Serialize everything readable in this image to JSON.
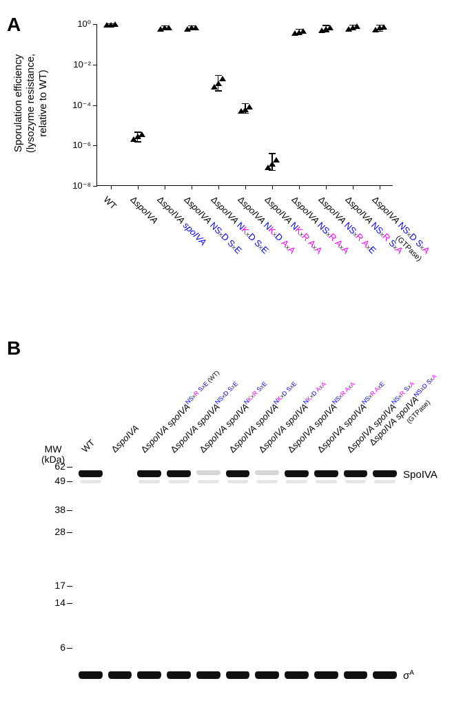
{
  "panelA": {
    "label": "A",
    "type": "scatter",
    "y_axis_label": "Sporulation efficiency\n(lysozyme resistance,\nrelative to WT)",
    "y_scale": "log",
    "ylim": [
      1e-08,
      1.0
    ],
    "y_ticks": [
      1e-08,
      1e-06,
      0.0001,
      0.01,
      1.0
    ],
    "y_tick_labels": [
      "10⁻⁸",
      "10⁻⁶",
      "10⁻⁴",
      "10⁻²",
      "10⁰"
    ],
    "axis_color": "#000000",
    "background_color": "#ffffff",
    "marker_shape": "triangle",
    "marker_color": "#000000",
    "marker_size": 8,
    "label_fontsize": 15,
    "tick_fontsize": 13,
    "x_label_fontsize": 13,
    "x_label_rotation": -45,
    "categories": [
      {
        "id": "wt",
        "plain": "WT",
        "italic": false
      },
      {
        "id": "dspoiva",
        "prefix": "Δ",
        "spoiva": true
      },
      {
        "id": "comp_wt",
        "prefix": "Δ",
        "spoiva": true,
        "comp": "spoIVA",
        "comp_color": "#0000ff"
      },
      {
        "id": "nsxd_sxe",
        "prefix": "Δ",
        "spoiva": true,
        "walkerA": [
          "N",
          "S",
          "D"
        ],
        "walkerB": [
          "S",
          "E"
        ]
      },
      {
        "id": "nkxd_sxe",
        "prefix": "Δ",
        "spoiva": true,
        "walkerA": [
          "N",
          "K",
          "D"
        ],
        "walkerB": [
          "S",
          "E"
        ]
      },
      {
        "id": "nkxd_axa",
        "prefix": "Δ",
        "spoiva": true,
        "walkerA": [
          "N",
          "K",
          "D"
        ],
        "walkerB": [
          "A",
          "A"
        ]
      },
      {
        "id": "nkxr_axa",
        "prefix": "Δ",
        "spoiva": true,
        "walkerA": [
          "N",
          "K",
          "R"
        ],
        "walkerB": [
          "A",
          "A"
        ]
      },
      {
        "id": "nsxr_axa",
        "prefix": "Δ",
        "spoiva": true,
        "walkerA": [
          "N",
          "S",
          "R"
        ],
        "walkerB": [
          "A",
          "A"
        ]
      },
      {
        "id": "nsxr_axe",
        "prefix": "Δ",
        "spoiva": true,
        "walkerA": [
          "N",
          "S",
          "R"
        ],
        "walkerB": [
          "A",
          "E"
        ]
      },
      {
        "id": "nsxr_sxa",
        "prefix": "Δ",
        "spoiva": true,
        "walkerA": [
          "N",
          "S",
          "R"
        ],
        "walkerB": [
          "S",
          "A"
        ]
      },
      {
        "id": "nsxd_sxa",
        "prefix": "Δ",
        "spoiva": true,
        "walkerA": [
          "N",
          "S",
          "D"
        ],
        "walkerB": [
          "S",
          "A"
        ],
        "note": "(GTPase)"
      }
    ],
    "data": [
      {
        "cat": 0,
        "points": [
          0.9,
          0.95,
          1.0
        ],
        "err": [
          0.85,
          1.05
        ]
      },
      {
        "cat": 1,
        "points": [
          2e-06,
          2.8e-06,
          3.5e-06
        ],
        "err": [
          1.5e-06,
          4.5e-06
        ]
      },
      {
        "cat": 2,
        "points": [
          0.6,
          0.65,
          0.7
        ],
        "err": [
          0.5,
          0.8
        ]
      },
      {
        "cat": 3,
        "points": [
          0.6,
          0.65,
          0.7
        ],
        "err": [
          0.5,
          0.8
        ]
      },
      {
        "cat": 4,
        "points": [
          0.0008,
          0.0012,
          0.002
        ],
        "err": [
          0.0005,
          0.003
        ]
      },
      {
        "cat": 5,
        "points": [
          5e-05,
          6e-05,
          8e-05
        ],
        "err": [
          4e-05,
          0.00012
        ]
      },
      {
        "cat": 6,
        "points": [
          8e-08,
          1.2e-07,
          2e-07
        ],
        "err": [
          6e-08,
          4e-07
        ]
      },
      {
        "cat": 7,
        "points": [
          0.35,
          0.4,
          0.45
        ],
        "err": [
          0.3,
          0.55
        ]
      },
      {
        "cat": 8,
        "points": [
          0.5,
          0.6,
          0.7
        ],
        "err": [
          0.4,
          0.85
        ]
      },
      {
        "cat": 9,
        "points": [
          0.6,
          0.7,
          0.8
        ],
        "err": [
          0.5,
          0.9
        ]
      },
      {
        "cat": 10,
        "points": [
          0.55,
          0.65,
          0.75
        ],
        "err": [
          0.45,
          0.88
        ]
      }
    ]
  },
  "panelB": {
    "label": "B",
    "type": "western_blot",
    "mw_header": "MW\n(kDa)",
    "mw_markers": [
      62,
      49,
      38,
      28,
      17,
      14,
      6
    ],
    "protein_label": "SpoIVA",
    "loading_control_label": "σᴬ",
    "band_color": "#111111",
    "background_color": "#ffffff",
    "lane_label_fontsize": 13,
    "mw_fontsize": 14,
    "lane_label_rotation": -45,
    "lanes": [
      {
        "id": "wt",
        "plain": "WT",
        "has_spoiva_band": true,
        "has_sigma": true
      },
      {
        "id": "dspoiva",
        "prefix": "Δ",
        "spoiva": true,
        "has_spoiva_band": false,
        "has_sigma": true
      },
      {
        "id": "comp_wt",
        "prefix": "Δ",
        "spoiva": true,
        "sup_walkerA": [
          "N",
          "S",
          "R"
        ],
        "sup_walkerB": [
          "S",
          "E"
        ],
        "sup_note": "(WT)",
        "has_spoiva_band": true,
        "has_sigma": true
      },
      {
        "id": "nsxd_sxe",
        "prefix": "Δ",
        "spoiva": true,
        "sup_walkerA": [
          "N",
          "S",
          "D"
        ],
        "sup_walkerB": [
          "S",
          "E"
        ],
        "has_spoiva_band": true,
        "has_sigma": true
      },
      {
        "id": "nkxr_sxe",
        "prefix": "Δ",
        "spoiva": true,
        "sup_walkerA": [
          "N",
          "K",
          "R"
        ],
        "sup_walkerB": [
          "S",
          "E"
        ],
        "has_spoiva_band": true,
        "faint": true,
        "has_sigma": true
      },
      {
        "id": "nkxd_sxe",
        "prefix": "Δ",
        "spoiva": true,
        "sup_walkerA": [
          "N",
          "K",
          "D"
        ],
        "sup_walkerB": [
          "S",
          "E"
        ],
        "has_spoiva_band": true,
        "has_sigma": true
      },
      {
        "id": "nkxd_axa",
        "prefix": "Δ",
        "spoiva": true,
        "sup_walkerA": [
          "N",
          "K",
          "D"
        ],
        "sup_walkerB": [
          "A",
          "A"
        ],
        "has_spoiva_band": true,
        "faint": true,
        "has_sigma": true
      },
      {
        "id": "nsxr_axa",
        "prefix": "Δ",
        "spoiva": true,
        "sup_walkerA": [
          "N",
          "S",
          "R"
        ],
        "sup_walkerB": [
          "A",
          "A"
        ],
        "has_spoiva_band": true,
        "has_sigma": true
      },
      {
        "id": "nsxr_axe",
        "prefix": "Δ",
        "spoiva": true,
        "sup_walkerA": [
          "N",
          "S",
          "R"
        ],
        "sup_walkerB": [
          "A",
          "E"
        ],
        "has_spoiva_band": true,
        "has_sigma": true
      },
      {
        "id": "nsxr_sxa",
        "prefix": "Δ",
        "spoiva": true,
        "sup_walkerA": [
          "N",
          "S",
          "R"
        ],
        "sup_walkerB": [
          "S",
          "A"
        ],
        "has_spoiva_band": true,
        "has_sigma": true
      },
      {
        "id": "nsxd_sxa",
        "prefix": "Δ",
        "spoiva": true,
        "sup_walkerA": [
          "N",
          "S",
          "D"
        ],
        "sup_walkerB": [
          "S",
          "A"
        ],
        "sup_note2": "(GTPase)",
        "has_spoiva_band": true,
        "has_sigma": true
      }
    ]
  },
  "colors": {
    "wt_residue": "#0000ff",
    "mut_residue": "#ff00ff",
    "text": "#000000"
  }
}
